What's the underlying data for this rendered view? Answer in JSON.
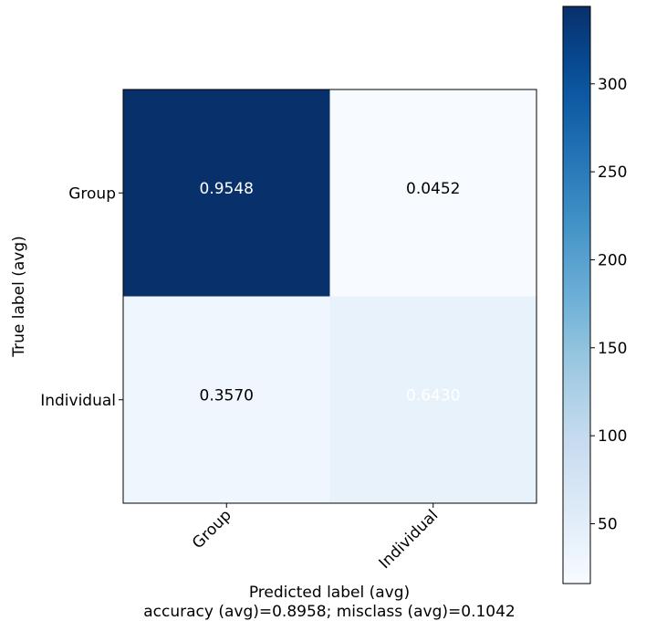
{
  "chart_data": {
    "type": "heatmap",
    "title": "",
    "xlabel": "Predicted label (avg)",
    "ylabel": "True label (avg)",
    "footer": "accuracy (avg)=0.8958; misclass (avg)=0.1042",
    "x_categories": [
      "Group",
      "Individual"
    ],
    "y_categories": [
      "Group",
      "Individual"
    ],
    "values": [
      [
        0.9548,
        0.0452
      ],
      [
        0.357,
        0.643
      ]
    ],
    "cell_labels": [
      [
        "0.9548",
        "0.0452"
      ],
      [
        "0.3570",
        "0.6430"
      ]
    ],
    "color_counts": [
      [
        344,
        16
      ],
      [
        28,
        40
      ]
    ],
    "colormap": "Blues",
    "colorbar": {
      "range": [
        16,
        344
      ],
      "ticks": [
        50,
        100,
        150,
        200,
        250,
        300
      ],
      "tick_labels": [
        "50",
        "100",
        "150",
        "200",
        "250",
        "300"
      ],
      "placement": "right"
    },
    "x_tick_rotation_deg": 45,
    "cell_label_colors": [
      [
        "#ffffff",
        "#000000"
      ],
      [
        "#000000",
        "#ffffff"
      ]
    ],
    "grid": false
  }
}
